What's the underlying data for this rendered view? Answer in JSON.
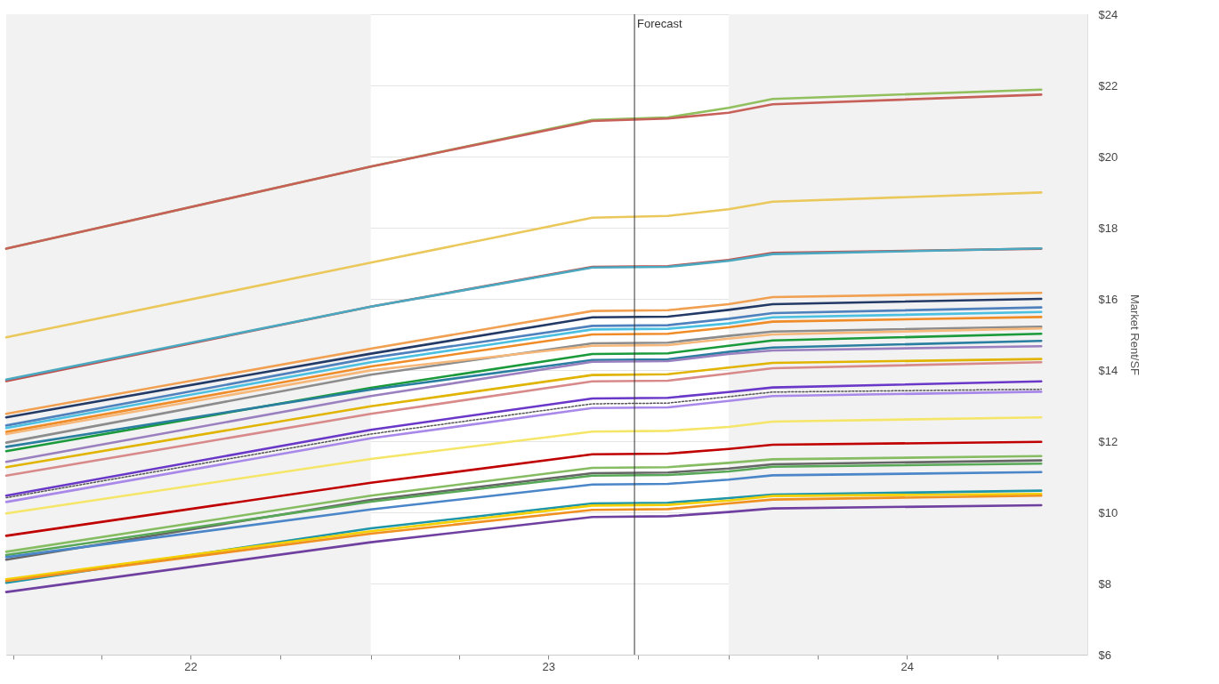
{
  "chart_data": {
    "type": "line",
    "ylabel": "Market Rent/SF",
    "x": [
      "2021-12-25",
      "2023-01-01",
      "2023-08-15",
      "2023-10-31",
      "2024-01-01",
      "2024-02-15",
      "2024-11-15"
    ],
    "xlim": [
      "2021-12-25",
      "2025-01-01"
    ],
    "xticks": [
      {
        "value": "2022-01-01",
        "label": null
      },
      {
        "value": "2022-04-01",
        "label": null
      },
      {
        "value": "2022-07-01",
        "label": "22"
      },
      {
        "value": "2022-10-01",
        "label": null
      },
      {
        "value": "2023-01-01",
        "label": null
      },
      {
        "value": "2023-04-01",
        "label": null
      },
      {
        "value": "2023-07-01",
        "label": "23"
      },
      {
        "value": "2023-10-01",
        "label": null
      },
      {
        "value": "2024-01-01",
        "label": null
      },
      {
        "value": "2024-04-01",
        "label": null
      },
      {
        "value": "2024-07-01",
        "label": "24"
      },
      {
        "value": "2024-10-01",
        "label": null
      }
    ],
    "ylim": [
      6,
      24
    ],
    "yticks": [
      {
        "value": 6,
        "label": "$6"
      },
      {
        "value": 8,
        "label": "$8"
      },
      {
        "value": 10,
        "label": "$10"
      },
      {
        "value": 12,
        "label": "$12"
      },
      {
        "value": 14,
        "label": "$14"
      },
      {
        "value": 16,
        "label": "$16"
      },
      {
        "value": 18,
        "label": "$18"
      },
      {
        "value": 20,
        "label": "$20"
      },
      {
        "value": 22,
        "label": "$22"
      },
      {
        "value": 24,
        "label": "$24"
      }
    ],
    "grid": "y",
    "marker": "none",
    "line_style": "solid",
    "bands": [
      {
        "axis": "x",
        "from": "2021-12-25",
        "to": "2023-01-01",
        "color": "#f2f2f2"
      },
      {
        "axis": "x",
        "from": "2024-01-01",
        "to": "2025-01-01",
        "color": "#f2f2f2"
      }
    ],
    "ref_lines": [
      {
        "axis": "x",
        "value": "2023-09-27",
        "label": "Forecast",
        "color": "#333333"
      }
    ],
    "series": [
      {
        "color": "#92c05e",
        "values": [
          17.41,
          19.72,
          21.03,
          21.1,
          21.37,
          21.62,
          21.88
        ]
      },
      {
        "color": "#c8605a",
        "values": [
          17.41,
          19.72,
          21.0,
          21.07,
          21.23,
          21.47,
          21.74
        ]
      },
      {
        "color": "#ebc85c",
        "values": [
          14.92,
          17.02,
          18.28,
          18.33,
          18.52,
          18.73,
          18.99
        ]
      },
      {
        "color": "#c0504d",
        "values": [
          13.69,
          15.78,
          16.9,
          16.92,
          17.09,
          17.29,
          17.41
        ]
      },
      {
        "color": "#4aa8c0",
        "values": [
          13.73,
          15.78,
          16.88,
          16.9,
          17.07,
          17.26,
          17.42
        ]
      },
      {
        "color": "#f0a050",
        "values": [
          12.77,
          14.6,
          15.66,
          15.68,
          15.85,
          16.05,
          16.17
        ]
      },
      {
        "color": "#243a66",
        "values": [
          12.67,
          14.46,
          15.48,
          15.5,
          15.69,
          15.85,
          16.0
        ]
      },
      {
        "color": "#4f81bd",
        "values": [
          12.44,
          14.34,
          15.24,
          15.26,
          15.44,
          15.6,
          15.76
        ]
      },
      {
        "color": "#4bc0e0",
        "values": [
          12.37,
          14.22,
          15.14,
          15.16,
          15.31,
          15.48,
          15.63
        ]
      },
      {
        "color": "#f08c28",
        "values": [
          12.26,
          14.1,
          15.0,
          15.02,
          15.2,
          15.36,
          15.49
        ]
      },
      {
        "color": "#8c8c8c",
        "values": [
          11.96,
          13.87,
          14.75,
          14.77,
          14.96,
          15.08,
          15.22
        ]
      },
      {
        "color": "#f5b87a",
        "values": [
          12.2,
          13.99,
          14.68,
          14.7,
          14.88,
          15.0,
          15.17
        ]
      },
      {
        "color": "#1a9a3a",
        "values": [
          11.72,
          13.5,
          14.45,
          14.47,
          14.68,
          14.83,
          15.02
        ]
      },
      {
        "color": "#2a7fa0",
        "values": [
          11.84,
          13.45,
          14.28,
          14.3,
          14.51,
          14.63,
          14.82
        ]
      },
      {
        "color": "#9b80c0",
        "values": [
          11.42,
          13.27,
          14.23,
          14.25,
          14.45,
          14.55,
          14.67
        ]
      },
      {
        "color": "#e0b400",
        "values": [
          11.27,
          12.98,
          13.86,
          13.88,
          14.07,
          14.2,
          14.31
        ]
      },
      {
        "color": "#d88a8a",
        "values": [
          11.03,
          12.77,
          13.68,
          13.7,
          13.9,
          14.05,
          14.22
        ]
      },
      {
        "color": "#6a38c8",
        "values": [
          10.47,
          12.32,
          13.2,
          13.22,
          13.38,
          13.51,
          13.68
        ]
      },
      {
        "color": "#555555",
        "line_style": "dotted",
        "values": [
          10.41,
          12.2,
          13.05,
          13.07,
          13.25,
          13.38,
          13.46
        ]
      },
      {
        "color": "#a888e8",
        "values": [
          10.29,
          12.08,
          12.93,
          12.95,
          13.13,
          13.27,
          13.39
        ]
      },
      {
        "color": "#f5e66a",
        "values": [
          9.97,
          11.5,
          12.27,
          12.29,
          12.4,
          12.55,
          12.67
        ]
      },
      {
        "color": "#c00000",
        "values": [
          9.34,
          10.83,
          11.63,
          11.65,
          11.78,
          11.9,
          11.98
        ]
      },
      {
        "color": "#86bc62",
        "values": [
          8.89,
          10.47,
          11.25,
          11.27,
          11.39,
          11.49,
          11.58
        ]
      },
      {
        "color": "#666666",
        "values": [
          8.67,
          10.35,
          11.1,
          11.12,
          11.23,
          11.35,
          11.46
        ]
      },
      {
        "color": "#58a858",
        "values": [
          8.8,
          10.3,
          11.03,
          11.05,
          11.15,
          11.28,
          11.37
        ]
      },
      {
        "color": "#4a86c8",
        "values": [
          8.74,
          10.08,
          10.78,
          10.8,
          10.92,
          11.04,
          11.13
        ]
      },
      {
        "color": "#1e96a8",
        "values": [
          8.02,
          9.55,
          10.25,
          10.27,
          10.4,
          10.5,
          10.61
        ]
      },
      {
        "color": "#f5d000",
        "values": [
          8.12,
          9.47,
          10.19,
          10.21,
          10.33,
          10.46,
          10.52
        ]
      },
      {
        "color": "#f09020",
        "values": [
          8.07,
          9.4,
          10.07,
          10.09,
          10.25,
          10.36,
          10.47
        ]
      },
      {
        "color": "#7040a0",
        "values": [
          7.76,
          9.16,
          9.87,
          9.89,
          10.01,
          10.11,
          10.2
        ]
      }
    ]
  }
}
